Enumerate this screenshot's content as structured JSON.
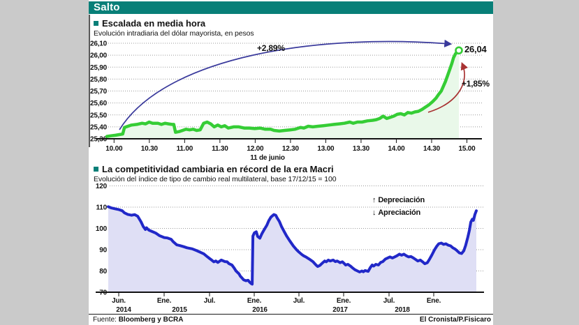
{
  "banner": {
    "title": "Salto"
  },
  "colors": {
    "teal": "#087f78",
    "green_line": "#35cd35",
    "green_fill": "#e9f8e9",
    "blue_line": "#2128c8",
    "blue_fill": "#dfdff5",
    "arrow_blue": "#3a3a9c",
    "arrow_red": "#a83232",
    "grid": "#999999",
    "axis": "#111111",
    "page_margin_gray": "#cacaca"
  },
  "footer": {
    "source_label": "Fuente:",
    "source_value": "Bloomberg y BCRA",
    "credit": "El Cronista/P.Fisicaro"
  },
  "chart_data": [
    {
      "type": "line",
      "title": "Escalada en media hora",
      "subtitle": "Evolución intradiaria del dólar mayorista, en pesos",
      "ylabels": [
        "26,10",
        "26,00",
        "25,90",
        "25,80",
        "25,70",
        "25,60",
        "25,50",
        "25,40",
        "25,30"
      ],
      "yvalues": [
        26.1,
        26.0,
        25.9,
        25.8,
        25.7,
        25.6,
        25.5,
        25.4,
        25.3
      ],
      "ylim": [
        25.3,
        26.1
      ],
      "xticks": [
        "10.00",
        "10.30",
        "11.00",
        "11.30",
        "12.00",
        "12.30",
        "13.00",
        "13.30",
        "14.00",
        "14.30",
        "15.00"
      ],
      "date_label": "11 de junio",
      "grid": "dotted horizontal",
      "annotations": {
        "total_change": "+2,89%",
        "last_value": "26,04",
        "partial_change": "+1,85%"
      },
      "series": [
        [
          0,
          25.32
        ],
        [
          0.012,
          25.325
        ],
        [
          0.025,
          25.33
        ],
        [
          0.035,
          25.335
        ],
        [
          0.045,
          25.34
        ],
        [
          0.05,
          25.395
        ],
        [
          0.06,
          25.405
        ],
        [
          0.07,
          25.415
        ],
        [
          0.085,
          25.42
        ],
        [
          0.1,
          25.43
        ],
        [
          0.11,
          25.425
        ],
        [
          0.12,
          25.44
        ],
        [
          0.13,
          25.43
        ],
        [
          0.145,
          25.43
        ],
        [
          0.155,
          25.42
        ],
        [
          0.165,
          25.43
        ],
        [
          0.175,
          25.425
        ],
        [
          0.185,
          25.42
        ],
        [
          0.19,
          25.42
        ],
        [
          0.195,
          25.355
        ],
        [
          0.205,
          25.36
        ],
        [
          0.215,
          25.37
        ],
        [
          0.225,
          25.38
        ],
        [
          0.235,
          25.375
        ],
        [
          0.245,
          25.38
        ],
        [
          0.255,
          25.37
        ],
        [
          0.265,
          25.375
        ],
        [
          0.275,
          25.43
        ],
        [
          0.285,
          25.44
        ],
        [
          0.295,
          25.425
        ],
        [
          0.305,
          25.4
        ],
        [
          0.315,
          25.415
        ],
        [
          0.325,
          25.4
        ],
        [
          0.335,
          25.41
        ],
        [
          0.345,
          25.39
        ],
        [
          0.36,
          25.4
        ],
        [
          0.375,
          25.4
        ],
        [
          0.39,
          25.39
        ],
        [
          0.405,
          25.39
        ],
        [
          0.42,
          25.385
        ],
        [
          0.435,
          25.39
        ],
        [
          0.45,
          25.38
        ],
        [
          0.465,
          25.38
        ],
        [
          0.475,
          25.37
        ],
        [
          0.49,
          25.365
        ],
        [
          0.505,
          25.37
        ],
        [
          0.52,
          25.375
        ],
        [
          0.535,
          25.38
        ],
        [
          0.55,
          25.395
        ],
        [
          0.56,
          25.39
        ],
        [
          0.572,
          25.405
        ],
        [
          0.585,
          25.4
        ],
        [
          0.6,
          25.405
        ],
        [
          0.615,
          25.41
        ],
        [
          0.63,
          25.415
        ],
        [
          0.645,
          25.42
        ],
        [
          0.66,
          25.425
        ],
        [
          0.675,
          25.43
        ],
        [
          0.69,
          25.44
        ],
        [
          0.7,
          25.43
        ],
        [
          0.712,
          25.44
        ],
        [
          0.725,
          25.44
        ],
        [
          0.74,
          25.45
        ],
        [
          0.755,
          25.455
        ],
        [
          0.765,
          25.46
        ],
        [
          0.775,
          25.47
        ],
        [
          0.785,
          25.49
        ],
        [
          0.795,
          25.47
        ],
        [
          0.805,
          25.48
        ],
        [
          0.815,
          25.49
        ],
        [
          0.825,
          25.505
        ],
        [
          0.835,
          25.51
        ],
        [
          0.845,
          25.5
        ],
        [
          0.855,
          25.52
        ],
        [
          0.865,
          25.515
        ],
        [
          0.875,
          25.525
        ],
        [
          0.885,
          25.53
        ],
        [
          0.895,
          25.545
        ],
        [
          0.905,
          25.565
        ],
        [
          0.915,
          25.585
        ],
        [
          0.925,
          25.61
        ],
        [
          0.935,
          25.64
        ],
        [
          0.942,
          25.67
        ],
        [
          0.95,
          25.7
        ],
        [
          0.956,
          25.74
        ],
        [
          0.962,
          25.78
        ],
        [
          0.968,
          25.83
        ],
        [
          0.974,
          25.88
        ],
        [
          0.98,
          25.93
        ],
        [
          0.985,
          25.98
        ],
        [
          0.99,
          26.01
        ],
        [
          0.995,
          26.03
        ],
        [
          1,
          26.04
        ]
      ]
    },
    {
      "type": "area",
      "title": "La competitividad cambiaria en récord de la era Macri",
      "subtitle": "Evolución del  índice de tipo de cambio real multilateral, base 17/12/15 = 100",
      "ylabels": [
        "120",
        "110",
        "100",
        "90",
        "80",
        "70"
      ],
      "yvalues": [
        120,
        110,
        100,
        90,
        80,
        70
      ],
      "ylim": [
        70,
        120
      ],
      "xticks": [
        "Jun.",
        "Ene.",
        "Jul.",
        "Ene.",
        "Jul.",
        "Ene.",
        "Jul.",
        "Ene."
      ],
      "year_labels": [
        "2014",
        "2015",
        "2016",
        "2017",
        "2018"
      ],
      "grid": "dotted horizontal",
      "legend": {
        "up": "Depreciación",
        "down": "Apreciación"
      },
      "series": [
        [
          0,
          110.2
        ],
        [
          0.009,
          109.6
        ],
        [
          0.019,
          109.2
        ],
        [
          0.028,
          108.9
        ],
        [
          0.038,
          108.3
        ],
        [
          0.044,
          107.3
        ],
        [
          0.053,
          106.6
        ],
        [
          0.063,
          106.2
        ],
        [
          0.072,
          106.5
        ],
        [
          0.08,
          105.7
        ],
        [
          0.089,
          103.1
        ],
        [
          0.095,
          100.9
        ],
        [
          0.101,
          99.5
        ],
        [
          0.104,
          100.3
        ],
        [
          0.11,
          99.2
        ],
        [
          0.12,
          98.5
        ],
        [
          0.129,
          97.8
        ],
        [
          0.139,
          96.6
        ],
        [
          0.152,
          95.7
        ],
        [
          0.161,
          95.5
        ],
        [
          0.171,
          94.9
        ],
        [
          0.176,
          93.8
        ],
        [
          0.186,
          92.3
        ],
        [
          0.195,
          91.9
        ],
        [
          0.205,
          91.4
        ],
        [
          0.214,
          90.9
        ],
        [
          0.228,
          90.4
        ],
        [
          0.241,
          89.5
        ],
        [
          0.25,
          88.8
        ],
        [
          0.26,
          88.0
        ],
        [
          0.269,
          86.7
        ],
        [
          0.275,
          85.9
        ],
        [
          0.281,
          85.1
        ],
        [
          0.287,
          84.3
        ],
        [
          0.292,
          84.7
        ],
        [
          0.298,
          84.0
        ],
        [
          0.307,
          85.1
        ],
        [
          0.317,
          84.4
        ],
        [
          0.323,
          84.3
        ],
        [
          0.328,
          83.4
        ],
        [
          0.336,
          82.8
        ],
        [
          0.342,
          81.4
        ],
        [
          0.347,
          80.0
        ],
        [
          0.355,
          78.7
        ],
        [
          0.359,
          77.5
        ],
        [
          0.364,
          76.6
        ],
        [
          0.368,
          75.8
        ],
        [
          0.374,
          75.4
        ],
        [
          0.38,
          75.6
        ],
        [
          0.383,
          75.0
        ],
        [
          0.385,
          74.6
        ],
        [
          0.389,
          74.0
        ],
        [
          0.391,
          73.8
        ],
        [
          0.393,
          96.4
        ],
        [
          0.397,
          97.9
        ],
        [
          0.402,
          98.4
        ],
        [
          0.406,
          96.2
        ],
        [
          0.412,
          95.4
        ],
        [
          0.417,
          97.4
        ],
        [
          0.423,
          99.2
        ],
        [
          0.431,
          101.5
        ],
        [
          0.436,
          103.6
        ],
        [
          0.442,
          105.3
        ],
        [
          0.45,
          106.5
        ],
        [
          0.455,
          106.2
        ],
        [
          0.459,
          104.9
        ],
        [
          0.465,
          103.2
        ],
        [
          0.471,
          100.8
        ],
        [
          0.478,
          98.5
        ],
        [
          0.484,
          96.6
        ],
        [
          0.493,
          94.2
        ],
        [
          0.503,
          91.7
        ],
        [
          0.512,
          89.9
        ],
        [
          0.518,
          88.9
        ],
        [
          0.526,
          87.7
        ],
        [
          0.531,
          87.1
        ],
        [
          0.537,
          86.6
        ],
        [
          0.546,
          85.6
        ],
        [
          0.556,
          84.4
        ],
        [
          0.564,
          82.9
        ],
        [
          0.569,
          82.1
        ],
        [
          0.575,
          82.6
        ],
        [
          0.583,
          83.9
        ],
        [
          0.588,
          84.7
        ],
        [
          0.592,
          84.3
        ],
        [
          0.598,
          85.1
        ],
        [
          0.603,
          84.7
        ],
        [
          0.611,
          85.1
        ],
        [
          0.617,
          84.4
        ],
        [
          0.622,
          84.7
        ],
        [
          0.63,
          83.9
        ],
        [
          0.636,
          84.3
        ],
        [
          0.641,
          83.5
        ],
        [
          0.645,
          82.8
        ],
        [
          0.651,
          83.1
        ],
        [
          0.658,
          82.3
        ],
        [
          0.664,
          81.4
        ],
        [
          0.67,
          80.6
        ],
        [
          0.677,
          80.0
        ],
        [
          0.683,
          79.5
        ],
        [
          0.689,
          80.0
        ],
        [
          0.693,
          79.6
        ],
        [
          0.698,
          80.2
        ],
        [
          0.706,
          79.8
        ],
        [
          0.712,
          81.6
        ],
        [
          0.717,
          82.8
        ],
        [
          0.721,
          82.3
        ],
        [
          0.727,
          83.1
        ],
        [
          0.734,
          82.8
        ],
        [
          0.74,
          84.0
        ],
        [
          0.746,
          84.4
        ],
        [
          0.753,
          85.6
        ],
        [
          0.759,
          86.1
        ],
        [
          0.765,
          86.6
        ],
        [
          0.772,
          86.1
        ],
        [
          0.778,
          86.6
        ],
        [
          0.784,
          87.1
        ],
        [
          0.791,
          87.9
        ],
        [
          0.797,
          87.4
        ],
        [
          0.803,
          87.9
        ],
        [
          0.81,
          87.1
        ],
        [
          0.816,
          86.6
        ],
        [
          0.822,
          86.8
        ],
        [
          0.829,
          86.1
        ],
        [
          0.835,
          85.4
        ],
        [
          0.841,
          84.7
        ],
        [
          0.848,
          85.1
        ],
        [
          0.854,
          84.3
        ],
        [
          0.86,
          83.4
        ],
        [
          0.867,
          83.9
        ],
        [
          0.873,
          85.6
        ],
        [
          0.879,
          87.4
        ],
        [
          0.886,
          89.8
        ],
        [
          0.892,
          91.5
        ],
        [
          0.898,
          92.8
        ],
        [
          0.905,
          93.1
        ],
        [
          0.911,
          92.5
        ],
        [
          0.917,
          92.8
        ],
        [
          0.924,
          92.1
        ],
        [
          0.93,
          91.8
        ],
        [
          0.936,
          90.9
        ],
        [
          0.943,
          90.2
        ],
        [
          0.949,
          89.3
        ],
        [
          0.954,
          88.5
        ],
        [
          0.96,
          88.2
        ],
        [
          0.966,
          89.5
        ],
        [
          0.971,
          92.0
        ],
        [
          0.977,
          96.0
        ],
        [
          0.981,
          99.0
        ],
        [
          0.985,
          103.0
        ],
        [
          0.989,
          104.3
        ],
        [
          0.992,
          103.8
        ],
        [
          0.996,
          106.5
        ],
        [
          1,
          108.3
        ]
      ]
    }
  ]
}
